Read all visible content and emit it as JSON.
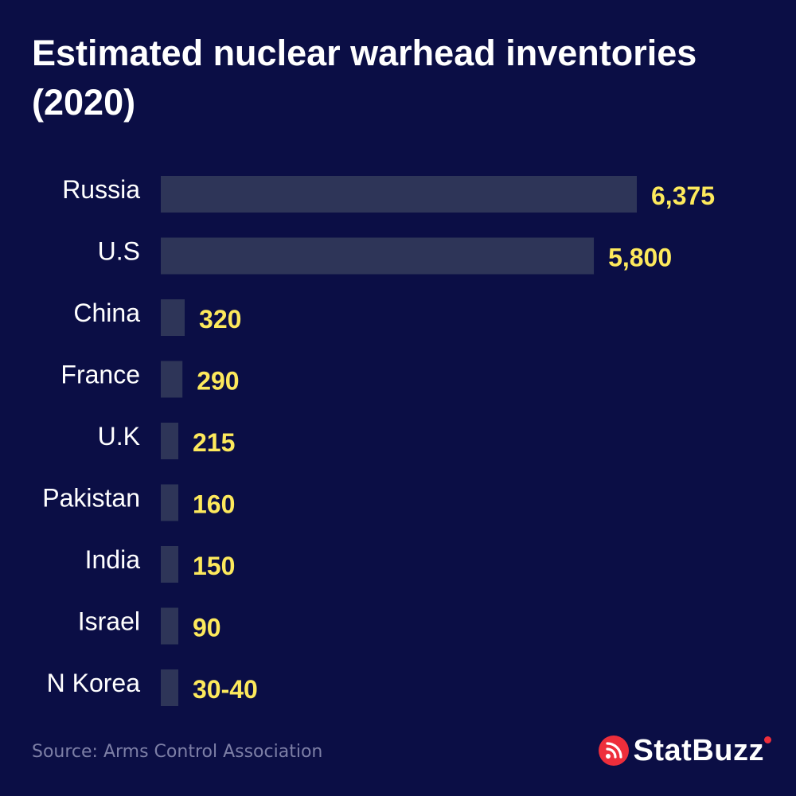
{
  "title": "Estimated nuclear warhead inventories (2020)",
  "source": "Source: Arms Control Association",
  "brand": {
    "name": "StatBuzz",
    "icon": "statbuzz-logo-icon",
    "accent_color": "#ee2e3b"
  },
  "colors": {
    "background": "#0b0e45",
    "bar": "#2e3558",
    "value_label": "#fde95c",
    "category_label": "#ffffff"
  },
  "chart_data": {
    "type": "bar",
    "orientation": "horizontal",
    "title": "Estimated nuclear warhead inventories (2020)",
    "categories": [
      "Russia",
      "U.S",
      "China",
      "France",
      "U.K",
      "Pakistan",
      "India",
      "Israel",
      "N Korea"
    ],
    "values": [
      6375,
      5800,
      320,
      290,
      215,
      160,
      150,
      90,
      35
    ],
    "value_labels": [
      "6,375",
      "5,800",
      "320",
      "290",
      "215",
      "160",
      "150",
      "90",
      "30-40"
    ],
    "xlabel": "",
    "ylabel": "",
    "grid": false,
    "legend": "none"
  }
}
